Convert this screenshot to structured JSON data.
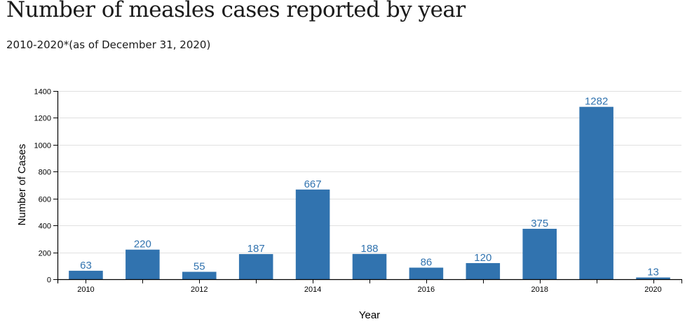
{
  "header": {
    "title": "Number of measles cases reported by year",
    "subtitle": "2010-2020*(as of December 31, 2020)"
  },
  "colors": {
    "bar": "#3173af",
    "label": "#3173af",
    "grid": "#e0e0e0",
    "axis": "#000000"
  },
  "chart_data": {
    "type": "bar",
    "title": "Number of measles cases reported by year",
    "subtitle": "2010-2020*(as of December 31, 2020)",
    "xlabel": "Year",
    "ylabel": "Number of Cases",
    "categories": [
      "2010",
      "2011",
      "2012",
      "2013",
      "2014",
      "2015",
      "2016",
      "2017",
      "2018",
      "2019",
      "2020"
    ],
    "values": [
      63,
      220,
      55,
      187,
      667,
      188,
      86,
      120,
      375,
      1282,
      13
    ],
    "x_tick_labels": [
      "2010",
      "",
      "2012",
      "",
      "2014",
      "",
      "2016",
      "",
      "2018",
      "",
      "2020"
    ],
    "y_ticks": [
      0,
      200,
      400,
      600,
      800,
      1000,
      1200,
      1400
    ],
    "ylim": [
      0,
      1400
    ],
    "grid": true,
    "data_labels": true,
    "legend": "none"
  }
}
